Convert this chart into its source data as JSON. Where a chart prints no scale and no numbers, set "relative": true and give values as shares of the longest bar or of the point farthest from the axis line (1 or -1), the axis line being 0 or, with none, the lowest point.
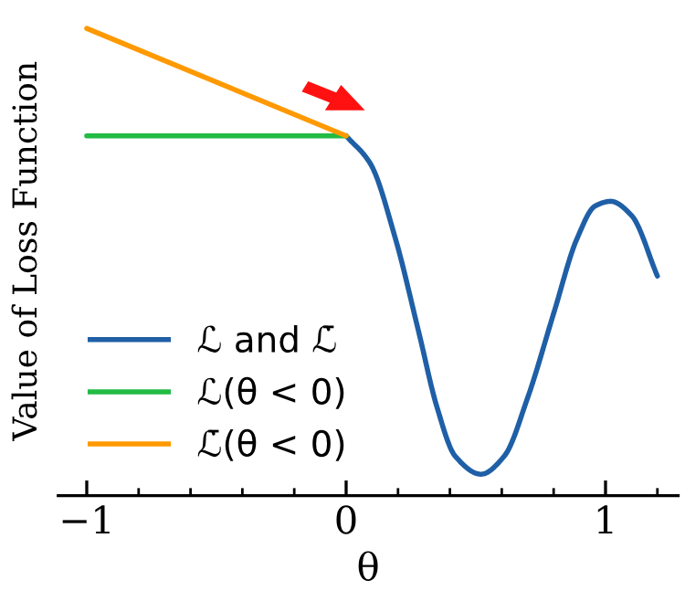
{
  "chart_data": {
    "type": "line",
    "relative": true,
    "xlabel": "θ",
    "ylabel": "Value of Loss Function",
    "xlim": [
      -1.11,
      1.28
    ],
    "xticks": [
      {
        "value": -1,
        "label": "−1"
      },
      {
        "value": -0.8,
        "label": null
      },
      {
        "value": -0.6,
        "label": null
      },
      {
        "value": -0.4,
        "label": null
      },
      {
        "value": -0.2,
        "label": null
      },
      0,
      {
        "value": 0.2,
        "label": null
      },
      {
        "value": 0.4,
        "label": null
      },
      {
        "value": 0.6,
        "label": null
      },
      {
        "value": 0.8,
        "label": null
      },
      1,
      {
        "value": 1.2,
        "label": null
      }
    ],
    "tick_labels": "x",
    "grid": false,
    "legend": "bottom left",
    "marker": "none",
    "line_style": "solid",
    "series": [
      {
        "name": "ℒ and ℒ̄",
        "color": "#1f5fa6",
        "x": [
          0,
          0.094,
          0.19,
          0.28,
          0.35,
          0.42,
          0.52,
          0.61,
          0.7,
          0.8,
          0.89,
          0.96,
          1.02,
          1.1,
          1.2
        ],
        "values": [
          0.77,
          0.71,
          0.55,
          0.35,
          0.19,
          0.085,
          0.046,
          0.085,
          0.21,
          0.39,
          0.55,
          0.62,
          0.63,
          0.6,
          0.47
        ]
      },
      {
        "name": "ℒ(θ < 0)",
        "color": "#22bb44",
        "x": [
          -1,
          0
        ],
        "values": [
          0.77,
          0.77
        ]
      },
      {
        "name": "ℒ̄(θ < 0)",
        "color": "#ff9900",
        "x": [
          -1,
          0
        ],
        "values": [
          1,
          0.77
        ]
      }
    ]
  }
}
